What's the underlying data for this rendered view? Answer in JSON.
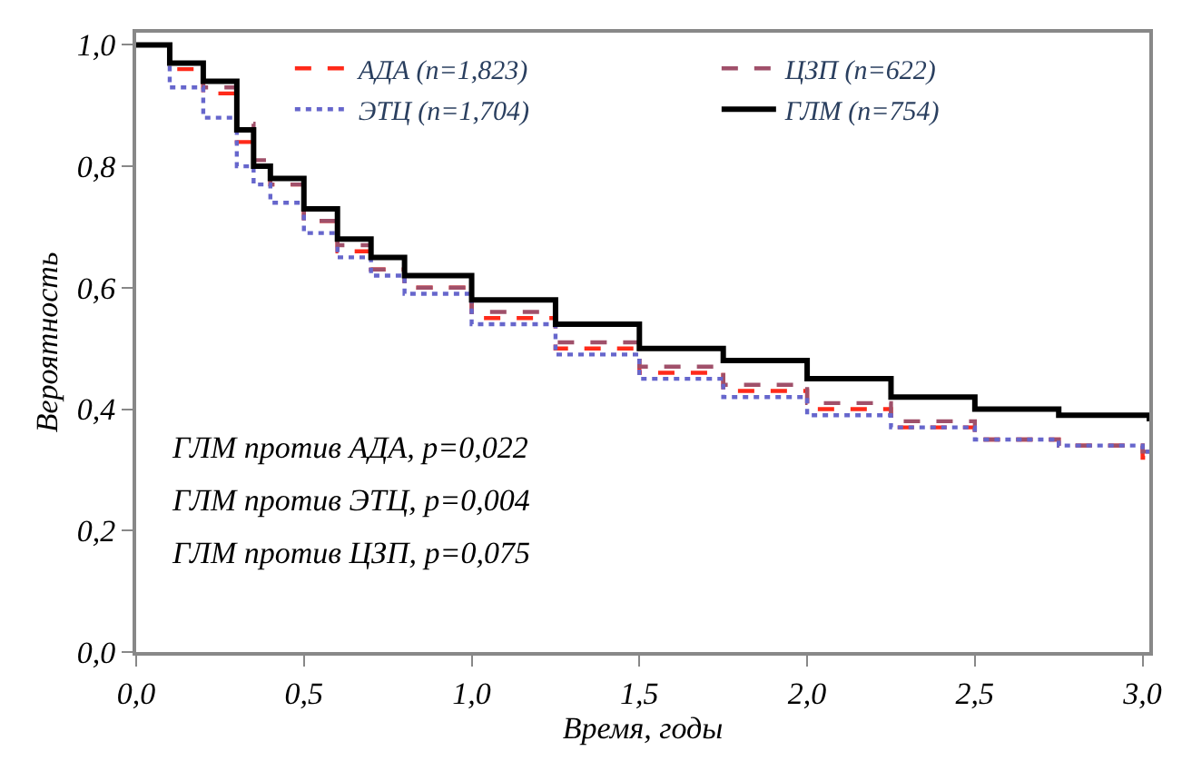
{
  "chart_data": {
    "type": "step",
    "xlabel": "Время, годы",
    "ylabel": "Вероятность",
    "xlim": [
      0,
      3.02
    ],
    "xticks": [
      {
        "value": 0,
        "label": "0,0"
      },
      {
        "value": 0.5,
        "label": "0,5"
      },
      {
        "value": 1,
        "label": "1,0"
      },
      {
        "value": 1.5,
        "label": "1,5"
      },
      {
        "value": 2,
        "label": "2,0"
      },
      {
        "value": 2.5,
        "label": "2,5"
      },
      {
        "value": 3,
        "label": "3,0"
      }
    ],
    "ylim": [
      0,
      1.02
    ],
    "yticks": [
      {
        "value": 0,
        "label": "0,0"
      },
      {
        "value": 0.2,
        "label": "0,2"
      },
      {
        "value": 0.4,
        "label": "0,4"
      },
      {
        "value": 0.6,
        "label": "0,6"
      },
      {
        "value": 0.8,
        "label": "0,8"
      },
      {
        "value": 1,
        "label": "1,0"
      }
    ],
    "x": [
      0,
      0.1,
      0.2,
      0.3,
      0.35,
      0.4,
      0.5,
      0.6,
      0.7,
      0.8,
      1.0,
      1.25,
      1.5,
      1.75,
      2.0,
      2.25,
      2.5,
      2.75,
      3.0,
      3.02
    ],
    "series": [
      {
        "name": "АДА (n=1,823)",
        "color": "#ff2a1a",
        "line_style": "dashed",
        "values": [
          1.0,
          0.96,
          0.92,
          0.84,
          0.8,
          0.77,
          0.71,
          0.66,
          0.63,
          0.6,
          0.55,
          0.5,
          0.46,
          0.43,
          0.4,
          0.37,
          0.35,
          0.34,
          0.32,
          0.31
        ]
      },
      {
        "name": "ЦЗП (n=622)",
        "color": "#a0506a",
        "line_style": "dashed",
        "values": [
          1.0,
          0.97,
          0.93,
          0.87,
          0.81,
          0.77,
          0.71,
          0.67,
          0.63,
          0.6,
          0.56,
          0.51,
          0.47,
          0.44,
          0.41,
          0.38,
          0.35,
          0.34,
          0.33,
          0.32
        ]
      },
      {
        "name": "ЭТЦ (n=1,704)",
        "color": "#6666cc",
        "line_style": "dotted",
        "values": [
          1.0,
          0.93,
          0.88,
          0.8,
          0.77,
          0.74,
          0.69,
          0.65,
          0.62,
          0.59,
          0.54,
          0.49,
          0.45,
          0.42,
          0.39,
          0.37,
          0.35,
          0.34,
          0.33,
          0.32
        ]
      },
      {
        "name": "ГЛМ (n=754)",
        "color": "#000000",
        "line_style": "solid",
        "values": [
          1.0,
          0.97,
          0.94,
          0.86,
          0.8,
          0.78,
          0.73,
          0.68,
          0.65,
          0.62,
          0.58,
          0.54,
          0.5,
          0.48,
          0.45,
          0.42,
          0.4,
          0.39,
          0.39,
          0.38
        ]
      }
    ],
    "legend": "top right",
    "annotations": [
      "ГЛМ против АДА, p=0,022",
      "ГЛМ против ЭТЦ, p=0,004",
      "ГЛМ против ЦЗП, p=0,075"
    ]
  }
}
